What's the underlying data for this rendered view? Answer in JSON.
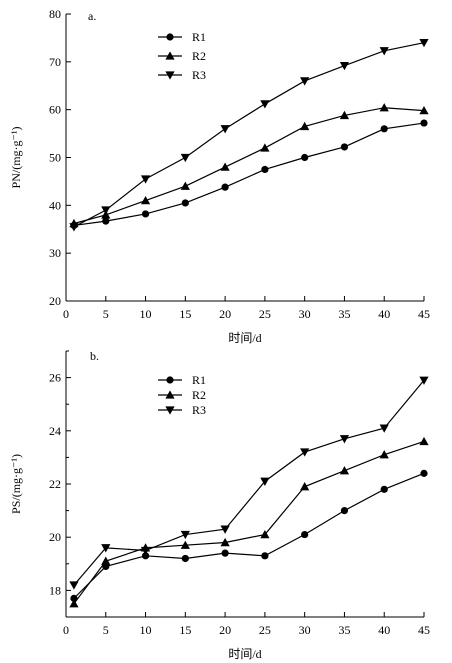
{
  "chart_data": [
    {
      "type": "line",
      "panel_label": "a.",
      "title": "",
      "xlabel": "时间/d",
      "ylabel": "PN/(mg·g⁻¹)",
      "xlim": [
        0,
        45
      ],
      "ylim": [
        20,
        80
      ],
      "xticks": [
        0,
        5,
        10,
        15,
        20,
        25,
        30,
        35,
        40,
        45
      ],
      "yticks": [
        20,
        30,
        40,
        50,
        60,
        70,
        80
      ],
      "grid": false,
      "legend_position": "top-center",
      "series": [
        {
          "name": "R1",
          "marker": "circle",
          "x": [
            1,
            5,
            10,
            15,
            20,
            25,
            30,
            35,
            40,
            45
          ],
          "y": [
            35.8,
            36.7,
            38.2,
            40.5,
            43.8,
            47.5,
            50.0,
            52.2,
            56.0,
            57.2
          ]
        },
        {
          "name": "R2",
          "marker": "triangle-up",
          "x": [
            1,
            5,
            10,
            15,
            20,
            25,
            30,
            35,
            40,
            45
          ],
          "y": [
            36.2,
            38.0,
            41.0,
            44.0,
            48.0,
            52.0,
            56.5,
            58.8,
            60.4,
            59.8
          ]
        },
        {
          "name": "R3",
          "marker": "triangle-down",
          "x": [
            1,
            5,
            10,
            15,
            20,
            25,
            30,
            35,
            40,
            45
          ],
          "y": [
            35.5,
            39.0,
            45.5,
            50.0,
            56.0,
            61.2,
            66.0,
            69.2,
            72.3,
            74.0
          ]
        }
      ]
    },
    {
      "type": "line",
      "panel_label": "b.",
      "title": "",
      "xlabel": "时间/d",
      "ylabel": "PS/(mg·g⁻¹)",
      "xlim": [
        0,
        45
      ],
      "ylim": [
        17,
        27
      ],
      "xticks": [
        0,
        5,
        10,
        15,
        20,
        25,
        30,
        35,
        40,
        45
      ],
      "yticks": [
        18,
        20,
        22,
        24,
        26
      ],
      "grid": false,
      "legend_position": "top-center",
      "series": [
        {
          "name": "R1",
          "marker": "circle",
          "x": [
            1,
            5,
            10,
            15,
            20,
            25,
            30,
            35,
            40,
            45
          ],
          "y": [
            17.7,
            18.9,
            19.3,
            19.2,
            19.4,
            19.3,
            20.1,
            21.0,
            21.8,
            22.4
          ]
        },
        {
          "name": "R2",
          "marker": "triangle-up",
          "x": [
            1,
            5,
            10,
            15,
            20,
            25,
            30,
            35,
            40,
            45
          ],
          "y": [
            17.5,
            19.1,
            19.6,
            19.7,
            19.8,
            20.1,
            21.9,
            22.5,
            23.1,
            23.6
          ]
        },
        {
          "name": "R3",
          "marker": "triangle-down",
          "x": [
            1,
            5,
            10,
            15,
            20,
            25,
            30,
            35,
            40,
            45
          ],
          "y": [
            18.2,
            19.6,
            19.5,
            20.1,
            20.3,
            22.1,
            23.2,
            23.7,
            24.1,
            25.9
          ]
        }
      ]
    }
  ]
}
